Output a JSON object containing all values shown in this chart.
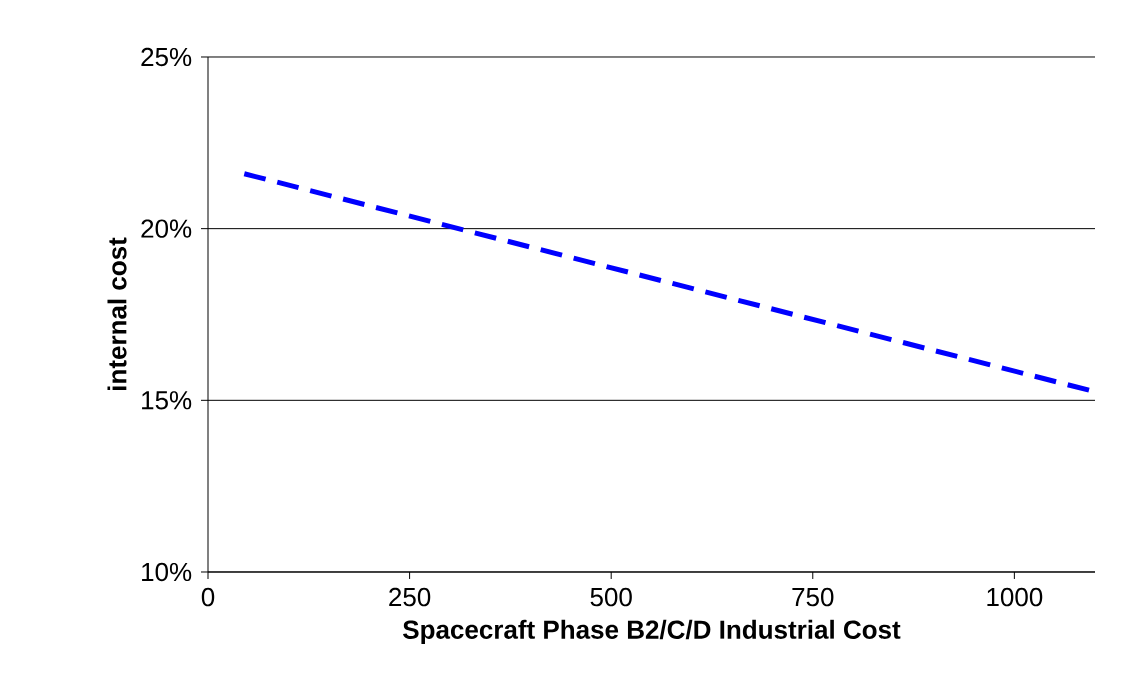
{
  "chart_data": {
    "type": "line",
    "xlabel": "Spacecraft Phase B2/C/D Industrial Cost",
    "ylabel": "internal cost",
    "x": [
      45,
      1100
    ],
    "series": [
      {
        "color": "#0000ff",
        "values": [
          21.6,
          15.25
        ],
        "line_style": "dashed"
      }
    ],
    "xlim": [
      0,
      1100
    ],
    "xticks": [
      0,
      250,
      500,
      750,
      1000
    ],
    "ylim": [
      10,
      25
    ],
    "yticks": [
      {
        "value": 10,
        "label": "10%"
      },
      {
        "value": 15,
        "label": "15%"
      },
      {
        "value": 20,
        "label": "20%"
      },
      {
        "value": 25,
        "label": "25%"
      }
    ],
    "grid": "y",
    "marker": "none"
  }
}
